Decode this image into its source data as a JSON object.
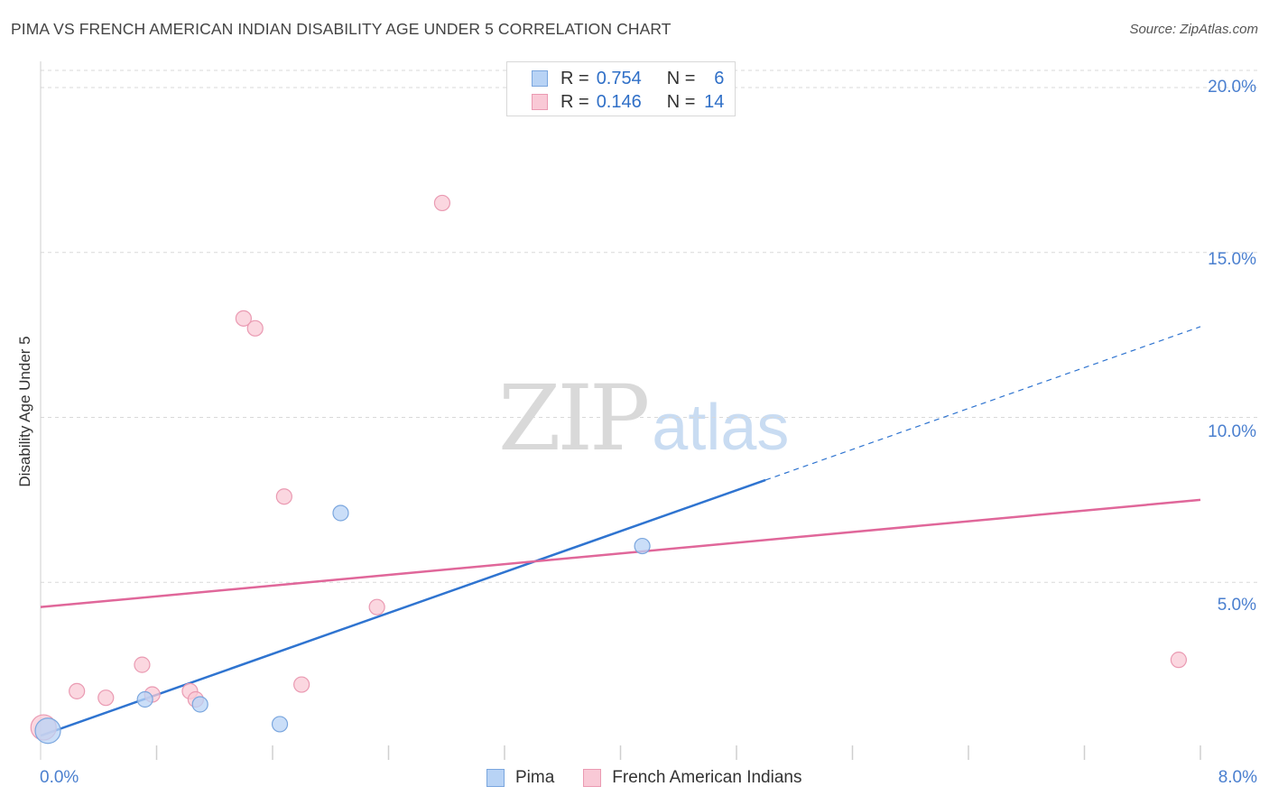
{
  "header": {
    "title": "PIMA VS FRENCH AMERICAN INDIAN DISABILITY AGE UNDER 5 CORRELATION CHART",
    "source": "Source: ZipAtlas.com"
  },
  "watermark": {
    "zip": "ZIP",
    "atlas": "atlas"
  },
  "legend": {
    "pima": {
      "r_label": "R =",
      "r_value": "0.754",
      "n_label": "N =",
      "n_value": "6"
    },
    "french": {
      "r_label": "R =",
      "r_value": "0.146",
      "n_label": "N =",
      "n_value": "14"
    }
  },
  "colors": {
    "pima_fill": "#b8d3f5",
    "pima_stroke": "#7aa6de",
    "pima_line": "#2f74d0",
    "french_fill": "#f9c9d6",
    "french_stroke": "#ea9ab2",
    "french_line": "#e0679a",
    "grid": "#d9d9d9",
    "tick_text": "#4a7fcf"
  },
  "chart_data": {
    "type": "scatter",
    "title": "PIMA VS FRENCH AMERICAN INDIAN DISABILITY AGE UNDER 5 CORRELATION CHART",
    "xlabel": "",
    "ylabel": "Disability Age Under 5",
    "xlim": [
      0,
      8
    ],
    "ylim": [
      0,
      20.5
    ],
    "x_tick_labels": [
      "0.0%",
      "8.0%"
    ],
    "y_ticks": [
      5,
      10,
      15,
      20
    ],
    "y_tick_labels": [
      "5.0%",
      "10.0%",
      "15.0%",
      "20.0%"
    ],
    "grid": true,
    "series": [
      {
        "name": "Pima",
        "points": [
          {
            "x": 0.05,
            "y": 0.5,
            "size": "large"
          },
          {
            "x": 0.72,
            "y": 1.45
          },
          {
            "x": 1.1,
            "y": 1.3
          },
          {
            "x": 1.65,
            "y": 0.7
          },
          {
            "x": 2.07,
            "y": 7.1
          },
          {
            "x": 4.15,
            "y": 6.1
          }
        ],
        "trend": {
          "x0": 0.0,
          "y0": 0.35,
          "x1": 5.0,
          "y1": 8.1,
          "dash_to_x": 8.0,
          "dash_to_y": 12.75
        }
      },
      {
        "name": "French American Indians",
        "points": [
          {
            "x": 0.02,
            "y": 0.6,
            "size": "large"
          },
          {
            "x": 0.25,
            "y": 1.7
          },
          {
            "x": 0.45,
            "y": 1.5
          },
          {
            "x": 0.7,
            "y": 2.5
          },
          {
            "x": 0.77,
            "y": 1.6
          },
          {
            "x": 1.03,
            "y": 1.7
          },
          {
            "x": 1.07,
            "y": 1.45
          },
          {
            "x": 1.4,
            "y": 13.0
          },
          {
            "x": 1.48,
            "y": 12.7
          },
          {
            "x": 1.68,
            "y": 7.6
          },
          {
            "x": 1.8,
            "y": 1.9
          },
          {
            "x": 2.32,
            "y": 4.25
          },
          {
            "x": 2.77,
            "y": 16.5
          },
          {
            "x": 7.85,
            "y": 2.65
          }
        ],
        "trend": {
          "x0": 0.0,
          "y0": 4.25,
          "x1": 8.0,
          "y1": 7.5
        }
      }
    ]
  },
  "bottom_legend": {
    "pima": "Pima",
    "french": "French American Indians"
  },
  "x_axis": {
    "left_label": "0.0%",
    "right_label": "8.0%"
  }
}
